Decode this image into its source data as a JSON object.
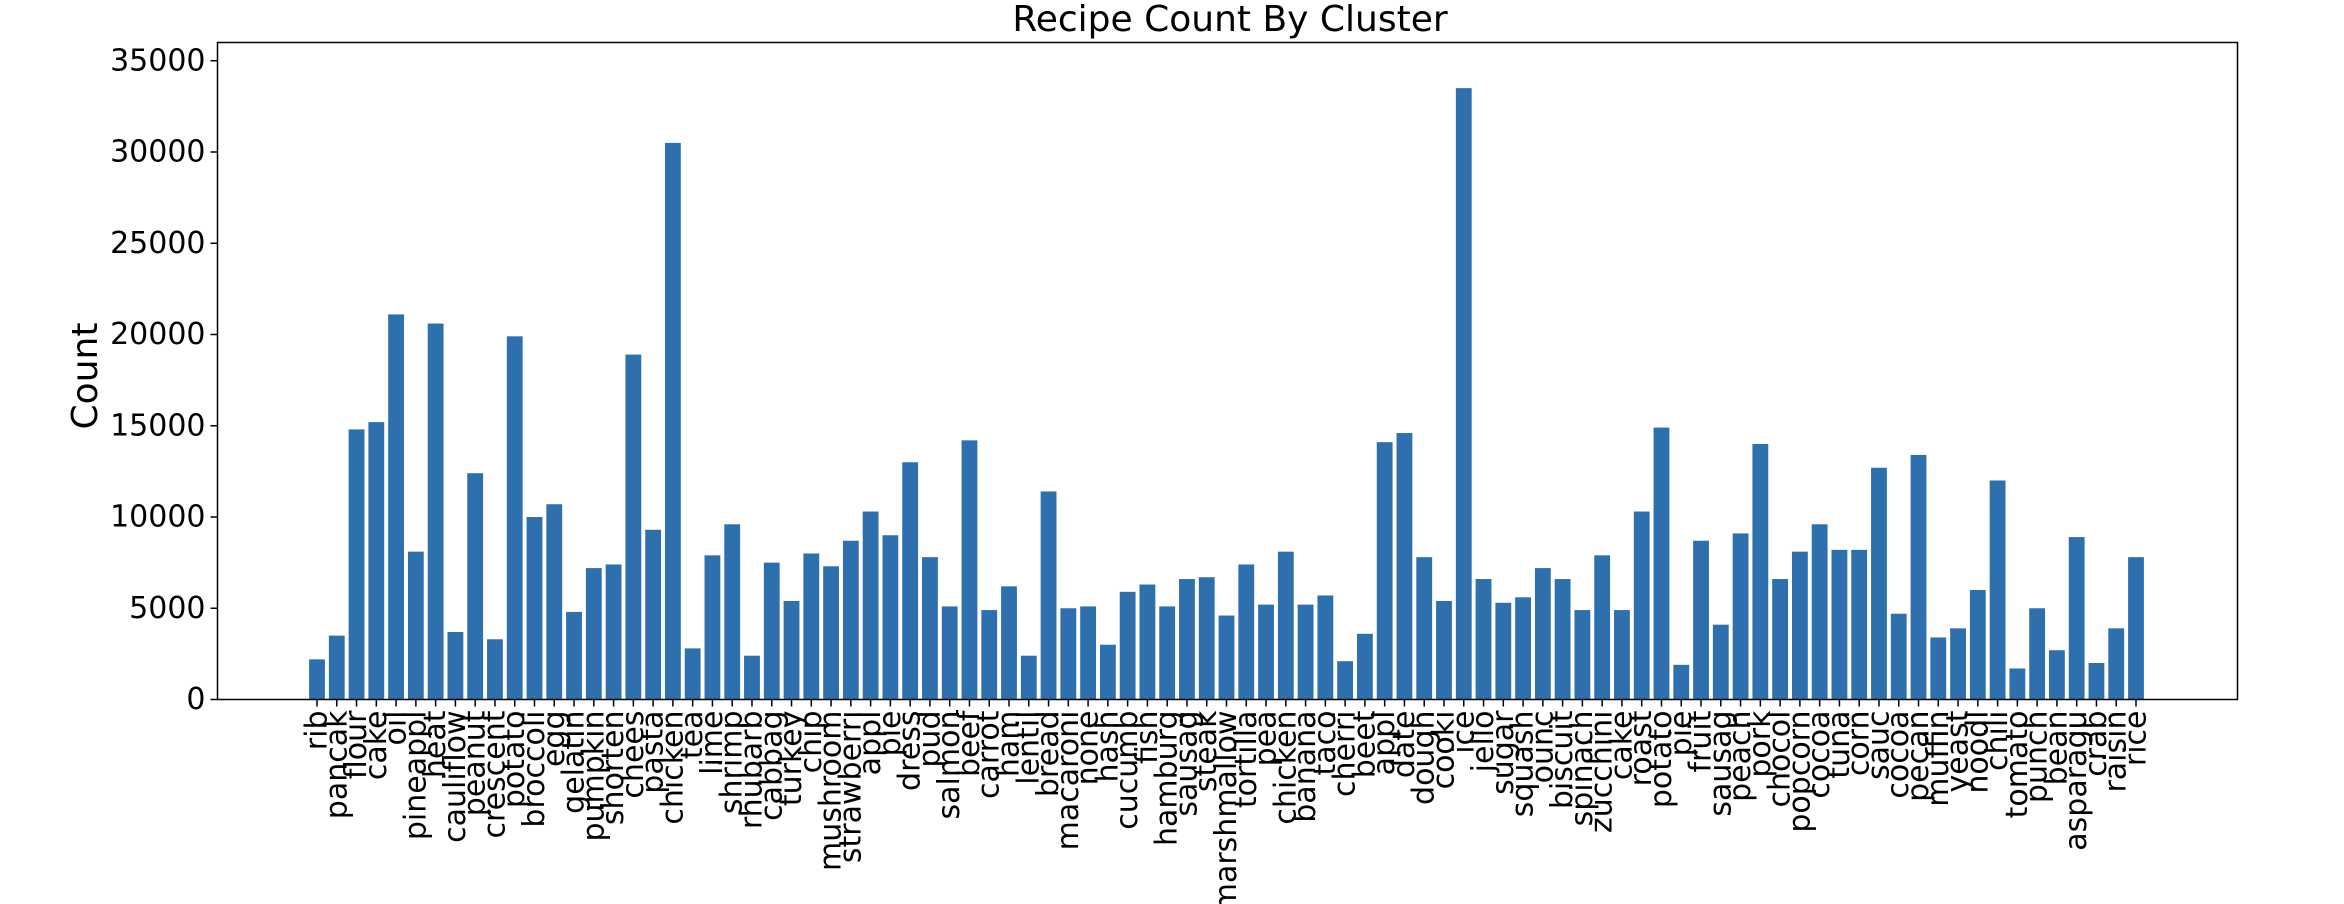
{
  "chart_data": {
    "type": "bar",
    "title": "Recipe Count By Cluster",
    "xlabel": "",
    "ylabel": "Count",
    "ylim": [
      0,
      36000
    ],
    "yticks": [
      0,
      5000,
      10000,
      15000,
      20000,
      25000,
      30000,
      35000
    ],
    "grid": false,
    "bar_color": "#2e6fad",
    "categories": [
      "rib",
      "pancak",
      "flour",
      "cake",
      "oil",
      "pineappl",
      "heat",
      "cauliflow",
      "peanut",
      "crescent",
      "potato",
      "broccoli",
      "egg",
      "gelatin",
      "pumpkin",
      "shorten",
      "chees",
      "pasta",
      "chicken",
      "tea",
      "lime",
      "shrimp",
      "rhubarb",
      "cabbag",
      "turkey",
      "chip",
      "mushroom",
      "strawberri",
      "appl",
      "pie",
      "dress",
      "pud",
      "salmon",
      "beef",
      "carrot",
      "ham",
      "lentil",
      "bread",
      "macaroni",
      "none",
      "hash",
      "cucumb",
      "fish",
      "hamburg",
      "sausag",
      "steak",
      "marshmallow",
      "tortilla",
      "pea",
      "chicken",
      "banana",
      "taco",
      "cherri",
      "beet",
      "appl",
      "date",
      "dough",
      "cooki",
      "ice",
      "jello",
      "sugar",
      "squash",
      "ounc",
      "biscuit",
      "spinach",
      "zucchini",
      "cake",
      "roast",
      "potato",
      "pie",
      "fruit",
      "sausag",
      "peach",
      "pork",
      "chocol",
      "popcorn",
      "cocoa",
      "tuna",
      "corn",
      "sauc",
      "cocoa",
      "pecan",
      "muffin",
      "yeast",
      "noodl",
      "chili",
      "tomato",
      "punch",
      "bean",
      "asparagu",
      "crab",
      "raisin",
      "rice"
    ],
    "values": [
      2200,
      3500,
      14800,
      15200,
      21100,
      8100,
      20600,
      3700,
      12400,
      3300,
      19900,
      10000,
      10700,
      4800,
      7200,
      7400,
      18900,
      9300,
      30500,
      2800,
      7900,
      9600,
      2400,
      7500,
      5400,
      8000,
      7300,
      8700,
      10300,
      9000,
      13000,
      7800,
      5100,
      14200,
      4900,
      6200,
      2400,
      11400,
      5000,
      5100,
      3000,
      5900,
      6300,
      5100,
      6600,
      6700,
      4600,
      7400,
      5200,
      8100,
      5200,
      5700,
      2100,
      3600,
      14100,
      14600,
      7800,
      5400,
      33500,
      6600,
      5300,
      5600,
      7200,
      6600,
      4900,
      7900,
      4900,
      10300,
      14900,
      1900,
      8700,
      4100,
      9100,
      14000,
      6600,
      8100,
      9600,
      8200,
      8200,
      12700,
      4700,
      13400,
      3400,
      3900,
      6000,
      12000,
      1700,
      5000,
      2700,
      8900,
      2000,
      3900,
      7800
    ]
  }
}
